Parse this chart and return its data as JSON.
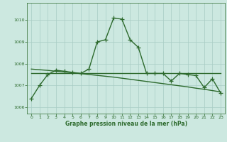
{
  "x": [
    0,
    1,
    2,
    3,
    4,
    5,
    6,
    7,
    8,
    9,
    10,
    11,
    12,
    13,
    14,
    15,
    16,
    17,
    18,
    19,
    20,
    21,
    22,
    23
  ],
  "y_main": [
    1006.4,
    1007.0,
    1007.5,
    1007.7,
    1007.65,
    1007.6,
    1007.55,
    1007.75,
    1009.0,
    1009.1,
    1010.1,
    1010.05,
    1009.1,
    1008.75,
    1007.55,
    1007.55,
    1007.55,
    1007.2,
    1007.55,
    1007.5,
    1007.45,
    1006.9,
    1007.3,
    1006.65
  ],
  "y_trend": [
    1007.75,
    1007.72,
    1007.69,
    1007.65,
    1007.62,
    1007.58,
    1007.54,
    1007.5,
    1007.46,
    1007.42,
    1007.38,
    1007.33,
    1007.28,
    1007.23,
    1007.18,
    1007.13,
    1007.08,
    1007.03,
    1006.98,
    1006.93,
    1006.87,
    1006.82,
    1006.76,
    1006.7
  ],
  "y_flat": [
    1007.55,
    1007.55,
    1007.55,
    1007.55,
    1007.55,
    1007.55,
    1007.55,
    1007.55,
    1007.55,
    1007.55,
    1007.55,
    1007.55,
    1007.55,
    1007.55,
    1007.55,
    1007.55,
    1007.55,
    1007.55,
    1007.55,
    1007.55,
    1007.55,
    1007.55,
    1007.55,
    1007.55
  ],
  "line_color": "#2d6a2d",
  "bg_color": "#cce8e0",
  "grid_color": "#a8ccc4",
  "xlabel": "Graphe pression niveau de la mer (hPa)",
  "xlim": [
    -0.5,
    23.5
  ],
  "ylim": [
    1005.7,
    1010.8
  ],
  "yticks": [
    1006,
    1007,
    1008,
    1009,
    1010
  ],
  "xticks": [
    0,
    1,
    2,
    3,
    4,
    5,
    6,
    7,
    8,
    9,
    10,
    11,
    12,
    13,
    14,
    15,
    16,
    17,
    18,
    19,
    20,
    21,
    22,
    23
  ],
  "marker_size": 4,
  "line_width": 1.0
}
